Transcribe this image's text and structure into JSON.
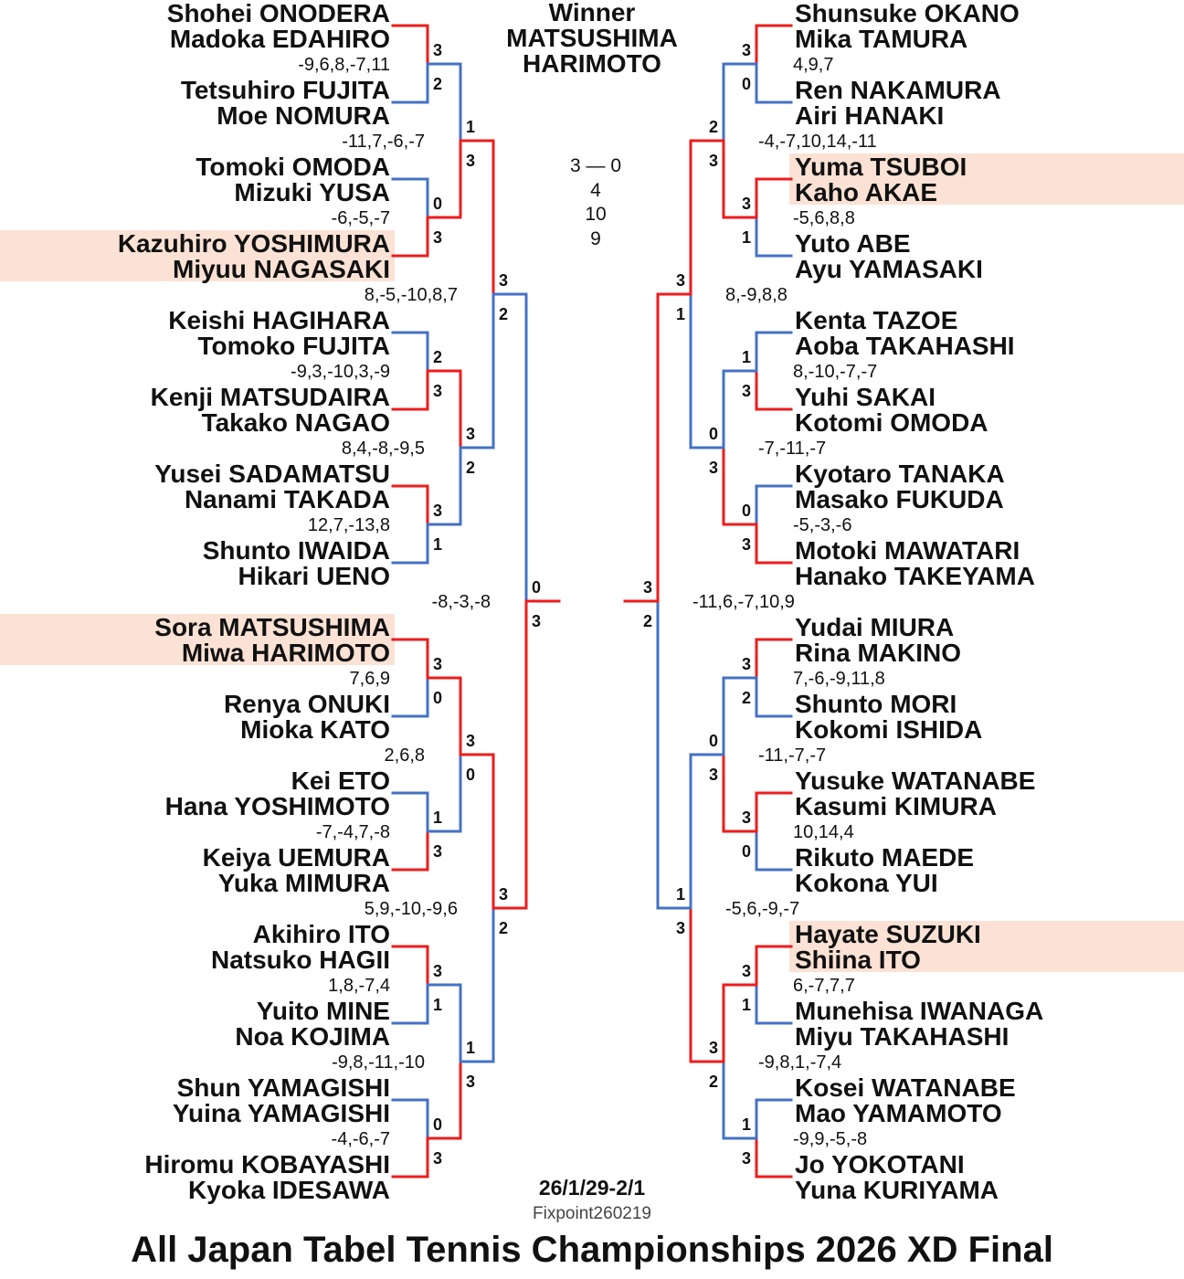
{
  "colors": {
    "winner_line": "#ee1c1c",
    "loser_line": "#4472c4",
    "highlight": "#fbe2d5"
  },
  "winner": {
    "label": "Winner",
    "line1": "MATSUSHIMA",
    "line2": "HARIMOTO"
  },
  "final": {
    "score": "3 — 0",
    "games": [
      "4",
      "10",
      "9"
    ]
  },
  "date": "26/1/29-2/1",
  "fixpoint": "Fixpoint260219",
  "title": "All Japan Tabel Tennis Championships 2026 XD Final",
  "left": {
    "teams": [
      {
        "p1": "Shohei ONODERA",
        "p2": "Madoka EDAHIRO"
      },
      {
        "p1": "Tetsuhiro FUJITA",
        "p2": "Moe NOMURA"
      },
      {
        "p1": "Tomoki OMODA",
        "p2": "Mizuki YUSA"
      },
      {
        "p1": "Kazuhiro YOSHIMURA",
        "p2": "Miyuu NAGASAKI",
        "highlight": true
      },
      {
        "p1": "Keishi HAGIHARA",
        "p2": "Tomoko FUJITA"
      },
      {
        "p1": "Kenji MATSUDAIRA",
        "p2": "Takako NAGAO"
      },
      {
        "p1": "Yusei SADAMATSU",
        "p2": "Nanami TAKADA"
      },
      {
        "p1": "Shunto IWAIDA",
        "p2": "Hikari UENO"
      },
      {
        "p1": "Sora MATSUSHIMA",
        "p2": "Miwa HARIMOTO",
        "highlight": true
      },
      {
        "p1": "Renya ONUKI",
        "p2": "Mioka KATO"
      },
      {
        "p1": "Kei ETO",
        "p2": "Hana YOSHIMOTO"
      },
      {
        "p1": "Keiya UEMURA",
        "p2": "Yuka MIMURA"
      },
      {
        "p1": "Akihiro ITO",
        "p2": "Natsuko HAGII"
      },
      {
        "p1": "Yuito MINE",
        "p2": "Noa KOJIMA"
      },
      {
        "p1": "Shun YAMAGISHI",
        "p2": "Yuina YAMAGISHI"
      },
      {
        "p1": "Hiromu KOBAYASHI",
        "p2": "Kyoka IDESAWA"
      }
    ],
    "rounds": [
      [
        {
          "top": 3,
          "bottom": 2,
          "games": "-9,6,8,-7,11"
        },
        {
          "top": 0,
          "bottom": 3,
          "games": "-6,-5,-7"
        },
        {
          "top": 2,
          "bottom": 3,
          "games": "-9,3,-10,3,-9"
        },
        {
          "top": 3,
          "bottom": 1,
          "games": "12,7,-13,8"
        },
        {
          "top": 3,
          "bottom": 0,
          "games": "7,6,9"
        },
        {
          "top": 1,
          "bottom": 3,
          "games": "-7,-4,7,-8"
        },
        {
          "top": 3,
          "bottom": 1,
          "games": "1,8,-7,4"
        },
        {
          "top": 0,
          "bottom": 3,
          "games": "-4,-6,-7"
        }
      ],
      [
        {
          "top": 1,
          "bottom": 3,
          "games": "-11,7,-6,-7"
        },
        {
          "top": 3,
          "bottom": 2,
          "games": "8,4,-8,-9,5"
        },
        {
          "top": 3,
          "bottom": 0,
          "games": "2,6,8"
        },
        {
          "top": 1,
          "bottom": 3,
          "games": "-9,8,-11,-10"
        }
      ],
      [
        {
          "top": 3,
          "bottom": 2,
          "games": "8,-5,-10,8,7"
        },
        {
          "top": 3,
          "bottom": 2,
          "games": "5,9,-10,-9,6"
        }
      ],
      [
        {
          "top": 0,
          "bottom": 3,
          "games": "-8,-3,-8"
        }
      ]
    ]
  },
  "right": {
    "teams": [
      {
        "p1": "Shunsuke OKANO",
        "p2": "Mika TAMURA"
      },
      {
        "p1": "Ren NAKAMURA",
        "p2": "Airi HANAKI"
      },
      {
        "p1": "Yuma TSUBOI",
        "p2": "Kaho AKAE",
        "highlight": true
      },
      {
        "p1": "Yuto ABE",
        "p2": "Ayu YAMASAKI"
      },
      {
        "p1": "Kenta TAZOE",
        "p2": "Aoba TAKAHASHI"
      },
      {
        "p1": "Yuhi SAKAI",
        "p2": "Kotomi OMODA"
      },
      {
        "p1": "Kyotaro TANAKA",
        "p2": "Masako FUKUDA"
      },
      {
        "p1": "Motoki MAWATARI",
        "p2": "Hanako TAKEYAMA"
      },
      {
        "p1": "Yudai MIURA",
        "p2": "Rina MAKINO"
      },
      {
        "p1": "Shunto MORI",
        "p2": "Kokomi ISHIDA"
      },
      {
        "p1": "Yusuke WATANABE",
        "p2": "Kasumi KIMURA"
      },
      {
        "p1": "Rikuto MAEDE",
        "p2": "Kokona YUI"
      },
      {
        "p1": "Hayate SUZUKI",
        "p2": "Shiina ITO",
        "highlight": true
      },
      {
        "p1": "Munehisa IWANAGA",
        "p2": "Miyu TAKAHASHI"
      },
      {
        "p1": "Kosei WATANABE",
        "p2": "Mao YAMAMOTO"
      },
      {
        "p1": "Jo YOKOTANI",
        "p2": "Yuna KURIYAMA"
      }
    ],
    "rounds": [
      [
        {
          "top": 3,
          "bottom": 0,
          "games": "4,9,7"
        },
        {
          "top": 3,
          "bottom": 1,
          "games": "-5,6,8,8"
        },
        {
          "top": 1,
          "bottom": 3,
          "games": "8,-10,-7,-7"
        },
        {
          "top": 0,
          "bottom": 3,
          "games": "-5,-3,-6"
        },
        {
          "top": 3,
          "bottom": 2,
          "games": "7,-6,-9,11,8"
        },
        {
          "top": 3,
          "bottom": 0,
          "games": "10,14,4"
        },
        {
          "top": 3,
          "bottom": 1,
          "games": "6,-7,7,7"
        },
        {
          "top": 1,
          "bottom": 3,
          "games": "-9,9,-5,-8"
        }
      ],
      [
        {
          "top": 2,
          "bottom": 3,
          "games": "-4,-7,10,14,-11"
        },
        {
          "top": 0,
          "bottom": 3,
          "games": "-7,-11,-7"
        },
        {
          "top": 0,
          "bottom": 3,
          "games": "-11,-7,-7"
        },
        {
          "top": 3,
          "bottom": 2,
          "games": "-9,8,1,-7,4"
        }
      ],
      [
        {
          "top": 3,
          "bottom": 1,
          "games": "8,-9,8,8"
        },
        {
          "top": 1,
          "bottom": 3,
          "games": "-5,6,-9,-7"
        }
      ],
      [
        {
          "top": 3,
          "bottom": 2,
          "games": "-11,6,-7,10,9"
        }
      ]
    ]
  }
}
